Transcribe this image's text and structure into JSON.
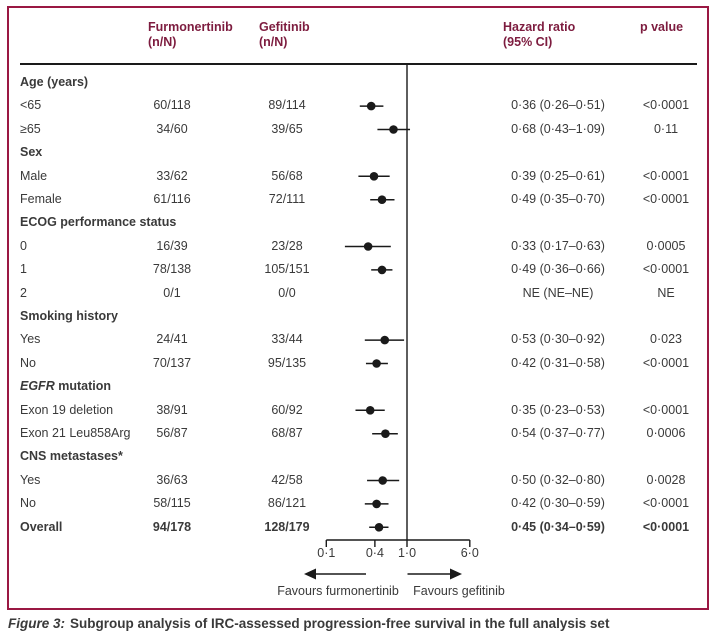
{
  "colors": {
    "frame_accent": "#9a1843",
    "header_text": "#7d1c3f",
    "body_text": "#3a3a3a",
    "plot_ink": "#1a1a1a"
  },
  "favours": {
    "left": "Favours furmonertinib",
    "right": "Favours gefitinib"
  },
  "caption": {
    "label": "Figure 3:",
    "text": "Subgroup analysis of IRC-assessed progression-free survival in the full analysis set"
  },
  "chart_data": {
    "type": "scatter",
    "subtype": "forest-plot",
    "title": "Figure 3: Subgroup analysis of IRC-assessed progression-free survival in the full analysis set",
    "x_scale": "log",
    "x_ticks": [
      0.1,
      0.4,
      1.0,
      6.0
    ],
    "x_tick_labels": [
      "0·1",
      "0·4",
      "1·0",
      "6·0"
    ],
    "reference_line": 1.0,
    "legend_position": "none",
    "grid": false,
    "columns": [
      {
        "name": "Furmonertinib",
        "sub": "(n/N)"
      },
      {
        "name": "Gefitinib",
        "sub": "(n/N)"
      },
      {
        "name": "Hazard ratio",
        "sub": "(95% CI)"
      },
      {
        "name": "p value",
        "sub": ""
      }
    ],
    "rows": [
      {
        "type": "group",
        "label": "Age (years)"
      },
      {
        "type": "item",
        "label": "<65",
        "furmonertinib": "60/118",
        "gefitinib": "89/114",
        "hr": "0·36 (0·26–0·51)",
        "p": "<0·0001",
        "est": 0.36,
        "lo": 0.26,
        "hi": 0.51
      },
      {
        "type": "item",
        "label": "≥65",
        "furmonertinib": "34/60",
        "gefitinib": "39/65",
        "hr": "0·68 (0·43–1·09)",
        "p": "0·11",
        "est": 0.68,
        "lo": 0.43,
        "hi": 1.09
      },
      {
        "type": "group",
        "label": "Sex"
      },
      {
        "type": "item",
        "label": "Male",
        "furmonertinib": "33/62",
        "gefitinib": "56/68",
        "hr": "0·39 (0·25–0·61)",
        "p": "<0·0001",
        "est": 0.39,
        "lo": 0.25,
        "hi": 0.61
      },
      {
        "type": "item",
        "label": "Female",
        "furmonertinib": "61/116",
        "gefitinib": "72/111",
        "hr": "0·49 (0·35–0·70)",
        "p": "<0·0001",
        "est": 0.49,
        "lo": 0.35,
        "hi": 0.7
      },
      {
        "type": "group",
        "label": "ECOG performance status"
      },
      {
        "type": "item",
        "label": "0",
        "furmonertinib": "16/39",
        "gefitinib": "23/28",
        "hr": "0·33 (0·17–0·63)",
        "p": "0·0005",
        "est": 0.33,
        "lo": 0.17,
        "hi": 0.63
      },
      {
        "type": "item",
        "label": "1",
        "furmonertinib": "78/138",
        "gefitinib": "105/151",
        "hr": "0·49 (0·36–0·66)",
        "p": "<0·0001",
        "est": 0.49,
        "lo": 0.36,
        "hi": 0.66
      },
      {
        "type": "item",
        "label": "2",
        "furmonertinib": "0/1",
        "gefitinib": "0/0",
        "hr": "NE (NE–NE)",
        "p": "NE",
        "est": null,
        "lo": null,
        "hi": null
      },
      {
        "type": "group",
        "label": "Smoking history"
      },
      {
        "type": "item",
        "label": "Yes",
        "furmonertinib": "24/41",
        "gefitinib": "33/44",
        "hr": "0·53 (0·30–0·92)",
        "p": "0·023",
        "est": 0.53,
        "lo": 0.3,
        "hi": 0.92
      },
      {
        "type": "item",
        "label": "No",
        "furmonertinib": "70/137",
        "gefitinib": "95/135",
        "hr": "0·42 (0·31–0·58)",
        "p": "<0·0001",
        "est": 0.42,
        "lo": 0.31,
        "hi": 0.58
      },
      {
        "type": "group",
        "label": "EGFR mutation",
        "italic_prefix": "EGFR"
      },
      {
        "type": "item",
        "label": "Exon 19 deletion",
        "furmonertinib": "38/91",
        "gefitinib": "60/92",
        "hr": "0·35 (0·23–0·53)",
        "p": "<0·0001",
        "est": 0.35,
        "lo": 0.23,
        "hi": 0.53
      },
      {
        "type": "item",
        "label": "Exon 21 Leu858Arg",
        "furmonertinib": "56/87",
        "gefitinib": "68/87",
        "hr": "0·54 (0·37–0·77)",
        "p": "0·0006",
        "est": 0.54,
        "lo": 0.37,
        "hi": 0.77
      },
      {
        "type": "group",
        "label": "CNS metastases*"
      },
      {
        "type": "item",
        "label": "Yes",
        "furmonertinib": "36/63",
        "gefitinib": "42/58",
        "hr": "0·50 (0·32–0·80)",
        "p": "0·0028",
        "est": 0.5,
        "lo": 0.32,
        "hi": 0.8
      },
      {
        "type": "item",
        "label": "No",
        "furmonertinib": "58/115",
        "gefitinib": "86/121",
        "hr": "0·42 (0·30–0·59)",
        "p": "<0·0001",
        "est": 0.42,
        "lo": 0.3,
        "hi": 0.59
      },
      {
        "type": "item",
        "label": "Overall",
        "furmonertinib": "94/178",
        "gefitinib": "128/179",
        "hr": "0·45 (0·34–0·59)",
        "p": "<0·0001",
        "est": 0.45,
        "lo": 0.34,
        "hi": 0.59,
        "bold": true
      }
    ]
  }
}
